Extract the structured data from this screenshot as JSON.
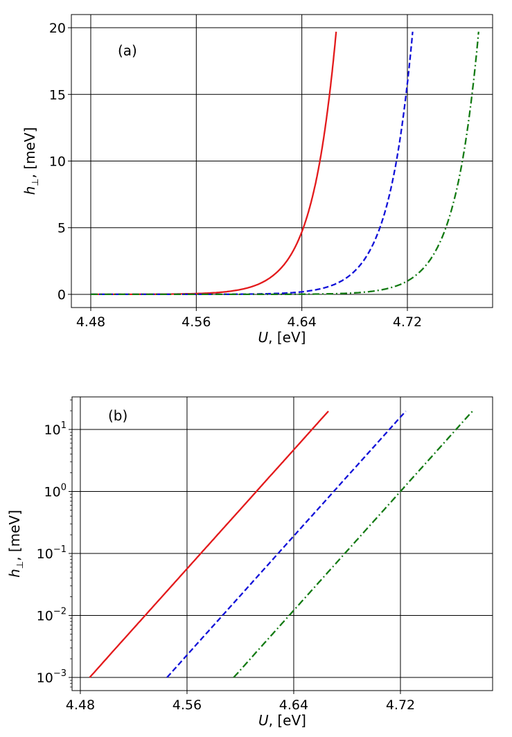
{
  "chart_data": [
    {
      "type": "line",
      "panel_label": "(a)",
      "xlabel_var": "U",
      "xlabel_unit": ", [eV]",
      "ylabel_var": "h",
      "ylabel_sub": "⊥",
      "ylabel_unit": ", [meV]",
      "yscale": "linear",
      "xlim": [
        4.4653,
        4.7846
      ],
      "ylim": [
        -0.99,
        20.99
      ],
      "xticks": [
        4.48,
        4.56,
        4.64,
        4.72
      ],
      "xtick_labels": [
        "4.48",
        "4.56",
        "4.64",
        "4.72"
      ],
      "yticks": [
        0,
        5,
        10,
        15,
        20
      ],
      "ytick_labels": [
        "0",
        "5",
        "10",
        "15",
        "20"
      ],
      "grid": true
    },
    {
      "type": "line",
      "panel_label": "(b)",
      "xlabel_var": "U",
      "xlabel_unit": ", [eV]",
      "ylabel_var": "h",
      "ylabel_sub": "⊥",
      "ylabel_unit": ", [meV]",
      "yscale": "log",
      "xlim": [
        4.4738,
        4.7891
      ],
      "ylim_log10": [
        -3.212,
        1.525
      ],
      "xticks": [
        4.48,
        4.56,
        4.64,
        4.72
      ],
      "xtick_labels": [
        "4.48",
        "4.56",
        "4.64",
        "4.72"
      ],
      "yticks_log10": [
        -3,
        -2,
        -1,
        0,
        1
      ],
      "ytick_labels": [
        {
          "base": "10",
          "exp": "−3"
        },
        {
          "base": "10",
          "exp": "−2"
        },
        {
          "base": "10",
          "exp": "−1"
        },
        {
          "base": "10",
          "exp": "0"
        },
        {
          "base": "10",
          "exp": "1"
        }
      ],
      "ymin_plotted": 0.001,
      "grid": true
    }
  ],
  "series": [
    {
      "name": "red-solid",
      "color": "#e31a1c",
      "dash": "solid",
      "x": [
        4.48,
        4.487,
        4.51,
        4.53,
        4.55,
        4.57,
        4.59,
        4.6,
        4.61,
        4.62,
        4.63,
        4.64,
        4.65,
        4.66,
        4.666
      ],
      "y": [
        0.00068,
        0.001,
        0.00358,
        0.0108,
        0.0326,
        0.0984,
        0.297,
        0.515,
        0.895,
        1.56,
        2.7,
        4.69,
        8.15,
        14.2,
        19.7
      ]
    },
    {
      "name": "blue-dashed",
      "color": "#1010d8",
      "dash": "dashed",
      "x": [
        4.48,
        4.545,
        4.568,
        4.588,
        4.608,
        4.628,
        4.648,
        4.658,
        4.668,
        4.678,
        4.688,
        4.698,
        4.708,
        4.718,
        4.724
      ],
      "y": [
        2.75e-05,
        0.001,
        0.00358,
        0.0108,
        0.0326,
        0.0984,
        0.297,
        0.515,
        0.895,
        1.56,
        2.7,
        4.69,
        8.15,
        14.2,
        19.7
      ]
    },
    {
      "name": "green-dashdot",
      "color": "#137a13",
      "dash": "dashdot",
      "x": [
        4.48,
        4.595,
        4.618,
        4.638,
        4.658,
        4.678,
        4.698,
        4.708,
        4.718,
        4.728,
        4.738,
        4.748,
        4.758,
        4.768,
        4.774
      ],
      "y": [
        1.7e-06,
        0.001,
        0.00358,
        0.0108,
        0.0326,
        0.0984,
        0.297,
        0.515,
        0.895,
        1.56,
        2.7,
        4.69,
        8.15,
        14.2,
        19.7
      ]
    }
  ]
}
